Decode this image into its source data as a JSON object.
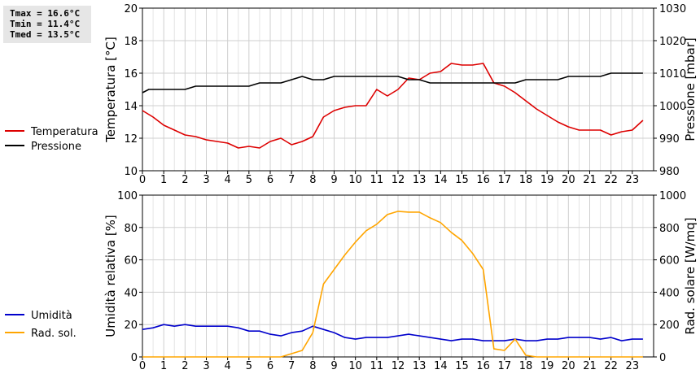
{
  "stats": {
    "tmax": "Tmax = 16.6°C",
    "tmin": "Tmin = 11.4°C",
    "tmed": "Tmed = 13.5°C"
  },
  "chart_data": [
    {
      "type": "line",
      "title": "",
      "xlabel": "",
      "ylabel": "Temperatura [°C]",
      "ylabel_right": "Pressione [mbar]",
      "xlim": [
        0,
        24
      ],
      "ylim": [
        10,
        20
      ],
      "ylim_right": [
        980,
        1030
      ],
      "grid": true,
      "x_ticks": [
        0,
        1,
        2,
        3,
        4,
        5,
        6,
        7,
        8,
        9,
        10,
        11,
        12,
        13,
        14,
        15,
        16,
        17,
        18,
        19,
        20,
        21,
        22,
        23
      ],
      "y_ticks": [
        10,
        12,
        14,
        16,
        18,
        20
      ],
      "y_ticks_right": [
        980,
        990,
        1000,
        1010,
        1020,
        1030
      ],
      "series": [
        {
          "name": "Temperatura",
          "color": "#dd0000",
          "axis": "left",
          "x": [
            0,
            0.5,
            1,
            1.5,
            2,
            2.5,
            3,
            3.5,
            4,
            4.5,
            5,
            5.5,
            6,
            6.5,
            7,
            7.5,
            8,
            8.5,
            9,
            9.5,
            10,
            10.5,
            11,
            11.5,
            12,
            12.5,
            13,
            13.5,
            14,
            14.5,
            15,
            15.5,
            16,
            16.5,
            17,
            17.5,
            18,
            18.5,
            19,
            19.5,
            20,
            20.5,
            21,
            21.5,
            22,
            22.5,
            23,
            23.5
          ],
          "values": [
            13.7,
            13.3,
            12.8,
            12.5,
            12.2,
            12.1,
            11.9,
            11.8,
            11.7,
            11.4,
            11.5,
            11.4,
            11.8,
            12.0,
            11.6,
            11.8,
            12.1,
            13.3,
            13.7,
            13.9,
            14.0,
            14.0,
            15.0,
            14.6,
            15.0,
            15.7,
            15.6,
            16.0,
            16.1,
            16.6,
            16.5,
            16.5,
            16.6,
            15.4,
            15.2,
            14.8,
            14.3,
            13.8,
            13.4,
            13.0,
            12.7,
            12.5,
            12.5,
            12.5,
            12.2,
            12.4,
            12.5,
            13.1
          ]
        },
        {
          "name": "Pressione",
          "color": "#000000",
          "axis": "right",
          "x": [
            0,
            0.3,
            1,
            2,
            2.5,
            3,
            4,
            5,
            5.5,
            6,
            6.5,
            7,
            7.5,
            8,
            8.5,
            9,
            10,
            11,
            12,
            12.5,
            13,
            13.5,
            14,
            15,
            16,
            17,
            17.5,
            18,
            19,
            19.5,
            20,
            21,
            21.5,
            22,
            23,
            23.5
          ],
          "values": [
            1004,
            1005,
            1005,
            1005,
            1006,
            1006,
            1006,
            1006,
            1007,
            1007,
            1007,
            1008,
            1009,
            1008,
            1008,
            1009,
            1009,
            1009,
            1009,
            1008,
            1008,
            1007,
            1007,
            1007,
            1007,
            1007,
            1007,
            1008,
            1008,
            1008,
            1009,
            1009,
            1009,
            1010,
            1010,
            1010
          ]
        }
      ]
    },
    {
      "type": "line",
      "title": "",
      "xlabel": "",
      "ylabel": "Umidità relativa [%]",
      "ylabel_right": "Rad. solare [W/mq]",
      "xlim": [
        0,
        24
      ],
      "ylim": [
        0,
        100
      ],
      "ylim_right": [
        0,
        1000
      ],
      "grid": true,
      "x_ticks": [
        0,
        1,
        2,
        3,
        4,
        5,
        6,
        7,
        8,
        9,
        10,
        11,
        12,
        13,
        14,
        15,
        16,
        17,
        18,
        19,
        20,
        21,
        22,
        23
      ],
      "y_ticks": [
        0,
        20,
        40,
        60,
        80,
        100
      ],
      "y_ticks_right": [
        0,
        200,
        400,
        600,
        800,
        1000
      ],
      "series": [
        {
          "name": "Umidità",
          "color": "#0000cc",
          "axis": "left",
          "x": [
            0,
            0.5,
            1,
            1.5,
            2,
            2.5,
            3,
            3.5,
            4,
            4.5,
            5,
            5.5,
            6,
            6.5,
            7,
            7.5,
            8,
            8.5,
            9,
            9.5,
            10,
            10.5,
            11,
            11.5,
            12,
            12.5,
            13,
            13.5,
            14,
            14.5,
            15,
            15.5,
            16,
            16.5,
            17,
            17.5,
            18,
            18.5,
            19,
            19.5,
            20,
            20.5,
            21,
            21.5,
            22,
            22.5,
            23,
            23.5
          ],
          "values": [
            17,
            18,
            20,
            19,
            20,
            19,
            19,
            19,
            19,
            18,
            16,
            16,
            14,
            13,
            15,
            16,
            19,
            17,
            15,
            12,
            11,
            12,
            12,
            12,
            13,
            14,
            13,
            12,
            11,
            10,
            11,
            11,
            10,
            10,
            10,
            11,
            10,
            10,
            11,
            11,
            12,
            12,
            12,
            11,
            12,
            10,
            11,
            11
          ]
        },
        {
          "name": "Rad. sol.",
          "color": "#ffa500",
          "axis": "right",
          "x": [
            0,
            6.5,
            7,
            7.5,
            8,
            8.5,
            9,
            9.5,
            10,
            10.5,
            11,
            11.5,
            12,
            12.5,
            13,
            13.5,
            14,
            14.5,
            15,
            15.5,
            16,
            16.5,
            17,
            17.5,
            18,
            18.5,
            19,
            23.5
          ],
          "values": [
            0,
            0,
            20,
            40,
            150,
            450,
            540,
            630,
            710,
            780,
            820,
            880,
            900,
            895,
            895,
            860,
            830,
            770,
            720,
            640,
            540,
            50,
            40,
            110,
            10,
            0,
            0,
            0
          ]
        }
      ]
    }
  ]
}
